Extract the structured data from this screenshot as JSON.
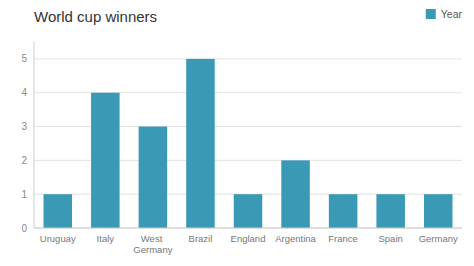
{
  "chart_data": {
    "type": "bar",
    "title": "World cup winners",
    "categories": [
      "Uruguay",
      "Italy",
      "West Germany",
      "Brazil",
      "England",
      "Argentina",
      "France",
      "Spain",
      "Germany"
    ],
    "series": [
      {
        "name": "Year",
        "color": "#3a9ab5",
        "values": [
          1,
          4,
          3,
          5,
          1,
          2,
          1,
          1,
          1
        ]
      }
    ],
    "ylim": [
      0,
      5.5
    ],
    "yticks": [
      0,
      1,
      2,
      3,
      4,
      5
    ],
    "grid": true,
    "legend": "top-right"
  }
}
